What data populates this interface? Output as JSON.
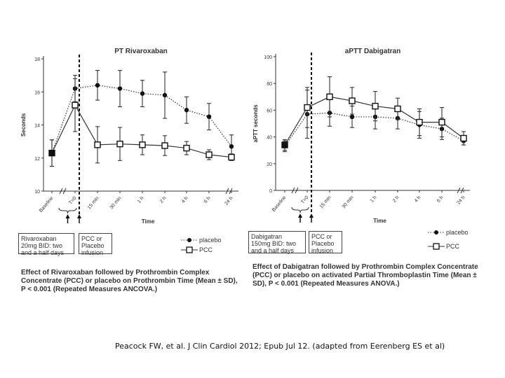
{
  "chart_data": [
    {
      "id": "pt",
      "type": "line",
      "title": "PT Rivaroxaban",
      "ylabel": "Seconds",
      "xlabel": "Time",
      "ylim": [
        10,
        18
      ],
      "yticks": [
        "10",
        "12",
        "14",
        "16",
        "18"
      ],
      "categories": [
        "Baseline",
        "T=0",
        "15 min",
        "30 min",
        "1 h",
        "2 h",
        "4 h",
        "6 h",
        "24 h"
      ],
      "series": [
        {
          "name": "placebo",
          "marker": "circle",
          "values": [
            12.3,
            16.2,
            16.4,
            16.2,
            15.9,
            15.8,
            14.9,
            14.5,
            12.7
          ],
          "err": [
            0.8,
            0.8,
            0.9,
            1.1,
            0.8,
            1.4,
            0.8,
            0.8,
            0.7
          ]
        },
        {
          "name": "PCC",
          "marker": "square",
          "values": [
            12.3,
            15.2,
            12.8,
            12.85,
            12.8,
            12.75,
            12.6,
            12.2,
            12.05
          ],
          "err": [
            0.8,
            1.6,
            1.1,
            1.0,
            0.6,
            0.6,
            0.4,
            0.3,
            0.2
          ]
        }
      ],
      "event_line_at": "T=0"
    },
    {
      "id": "aptt",
      "type": "line",
      "title": "aPTT Dabigatran",
      "ylabel": "aPTT seconds",
      "xlabel": "Time",
      "ylim": [
        0,
        100
      ],
      "yticks": [
        "0",
        "20",
        "40",
        "60",
        "80",
        "100"
      ],
      "categories": [
        "Baseline",
        "T=0",
        "15 min",
        "30 min",
        "1 h",
        "2 h",
        "4 h",
        "6 h",
        "24 h"
      ],
      "series": [
        {
          "name": "placebo",
          "marker": "circle",
          "values": [
            33,
            57,
            58,
            55,
            55,
            54,
            49,
            46,
            37
          ],
          "err": [
            4,
            18,
            10,
            8,
            9,
            8,
            10,
            8,
            3
          ]
        },
        {
          "name": "PCC",
          "marker": "square",
          "values": [
            34,
            62,
            70,
            67,
            63,
            61,
            51,
            51,
            39
          ],
          "err": [
            4,
            15,
            15,
            10,
            11,
            8,
            10,
            11,
            5
          ]
        }
      ],
      "event_line_at": "T=0"
    }
  ],
  "left_panel": {
    "box1": "Rivaroxaban 20mg BID: two and a half days",
    "box2": "PCC or Placebo infusion",
    "legend": {
      "placebo": "placebo",
      "pcc": "PCC"
    },
    "caption": "Effect of Rivaroxaban followed by Prothrombin Complex Concentrate (PCC) or placebo on Prothrombin Time (Mean ± SD), P < 0.001 (Repeated Measures ANCOVA.)"
  },
  "right_panel": {
    "box1": "Dabigatran 150mg BID: two and a half days",
    "box2": "PCC or Placebo infusion",
    "legend": {
      "placebo": "placebo",
      "pcc": "PCC"
    },
    "caption": "Effect of Dabigatran followed by Prothrombin Complex Concentrate (PCC) or placebo on activated Partial Thromboplastin Time (Mean ± SD), P < 0.001 (Repeated Measures ANOVA.)"
  },
  "citation": "Peacock FW, et al. J Clin Cardiol 2012; Epub Jul 12. (adapted from Eerenberg ES et al)"
}
